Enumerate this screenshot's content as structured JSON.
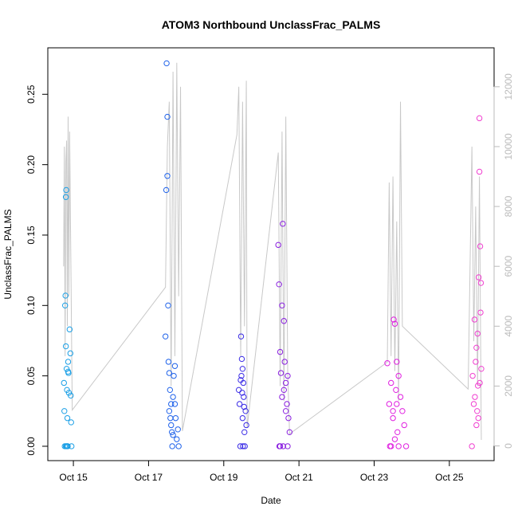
{
  "chart_data": {
    "type": "scatter",
    "title": "ATOM3 Northbound UnclassFrac_PALMS",
    "xlabel": "Date",
    "ylabel": "UnclassFrac_PALMS",
    "xlim": [
      14.32,
      26.19
    ],
    "ylim": [
      -0.0102,
      0.283
    ],
    "y2lim": [
      -491,
      13300
    ],
    "xticks": [
      {
        "value": 15,
        "label": "Oct 15"
      },
      {
        "value": 17,
        "label": "Oct 17"
      },
      {
        "value": 19,
        "label": "Oct 19"
      },
      {
        "value": 21,
        "label": "Oct 21"
      },
      {
        "value": 23,
        "label": "Oct 23"
      },
      {
        "value": 25,
        "label": "Oct 25"
      }
    ],
    "yticks": [
      {
        "value": 0,
        "label": "0.00"
      },
      0.05,
      {
        "value": 0.1,
        "label": "0.10"
      },
      0.15,
      {
        "value": 0.2,
        "label": "0.20"
      },
      0.25
    ],
    "y2ticks": [
      0,
      2000,
      4000,
      6000,
      8000,
      10000,
      12000
    ],
    "series": [
      {
        "color": "#1a9fe6",
        "x": [
          14.75,
          14.76,
          14.77,
          14.78,
          14.79,
          14.8,
          14.8,
          14.81,
          14.82,
          14.83,
          14.84,
          14.85,
          14.86,
          14.87,
          14.88,
          14.9,
          14.92,
          14.93,
          14.94,
          14.95,
          14.8,
          14.82,
          14.84,
          14.86
        ],
        "values": [
          0.045,
          0.025,
          0.0,
          0.1,
          0.107,
          0.071,
          0.177,
          0.182,
          0.055,
          0.04,
          0.02,
          0.0,
          0.06,
          0.052,
          0.038,
          0.083,
          0.066,
          0.036,
          0.017,
          0.0,
          0.0,
          0.0,
          0.0,
          0.053
        ]
      },
      {
        "color": "#1f62ea",
        "x": [
          17.45,
          17.47,
          17.48,
          17.5,
          17.5,
          17.52,
          17.53,
          17.55,
          17.57,
          17.58,
          17.6,
          17.62,
          17.63,
          17.65,
          17.67,
          17.7,
          17.72,
          17.75,
          17.78,
          17.8,
          17.55,
          17.6,
          17.65,
          17.7
        ],
        "values": [
          0.078,
          0.182,
          0.272,
          0.234,
          0.192,
          0.1,
          0.06,
          0.052,
          0.04,
          0.02,
          0.03,
          0.01,
          0.0,
          0.035,
          0.05,
          0.057,
          0.02,
          0.005,
          0.012,
          0.0,
          0.025,
          0.015,
          0.008,
          0.03
        ]
      },
      {
        "color": "#3a2be6",
        "x": [
          19.4,
          19.42,
          19.44,
          19.45,
          19.46,
          19.48,
          19.5,
          19.5,
          19.52,
          19.53,
          19.55,
          19.56,
          19.58,
          19.6,
          19.47,
          19.49,
          19.51,
          19.54
        ],
        "values": [
          0.04,
          0.03,
          0.0,
          0.047,
          0.078,
          0.062,
          0.055,
          0.02,
          0.045,
          0.035,
          0.01,
          0.0,
          0.025,
          0.015,
          0.05,
          0.038,
          0.0,
          0.028
        ]
      },
      {
        "color": "#8a1fe0",
        "x": [
          20.45,
          20.47,
          20.5,
          20.52,
          20.55,
          20.57,
          20.6,
          20.62,
          20.65,
          20.68,
          20.7,
          20.72,
          20.75,
          20.5,
          20.55,
          20.6,
          20.65,
          20.7,
          20.58,
          20.48
        ],
        "values": [
          0.143,
          0.115,
          0.067,
          0.052,
          0.1,
          0.158,
          0.089,
          0.06,
          0.045,
          0.03,
          0.0,
          0.02,
          0.01,
          0.0,
          0.035,
          0.04,
          0.025,
          0.05,
          0.0,
          0.0
        ]
      },
      {
        "color": "#e01fe0",
        "x": [
          23.35,
          23.4,
          23.42,
          23.45,
          23.5,
          23.52,
          23.55,
          23.58,
          23.6,
          23.62,
          23.65,
          23.7,
          23.75,
          23.8,
          23.85,
          23.45,
          23.55,
          23.65,
          23.5,
          23.6
        ],
        "values": [
          0.059,
          0.03,
          0.0,
          0.045,
          0.02,
          0.09,
          0.087,
          0.04,
          0.06,
          0.01,
          0.0,
          0.035,
          0.025,
          0.015,
          0.0,
          0.0,
          0.005,
          0.05,
          0.025,
          0.03
        ]
      },
      {
        "color": "#f03fd0",
        "x": [
          25.6,
          25.62,
          25.65,
          25.67,
          25.7,
          25.72,
          25.74,
          25.75,
          25.76,
          25.78,
          25.8,
          25.8,
          25.82,
          25.83,
          25.85,
          25.68,
          25.72,
          25.77,
          25.81,
          25.84
        ],
        "values": [
          0.0,
          0.05,
          0.03,
          0.09,
          0.06,
          0.07,
          0.025,
          0.08,
          0.043,
          0.12,
          0.233,
          0.195,
          0.142,
          0.095,
          0.055,
          0.035,
          0.015,
          0.02,
          0.045,
          0.116
        ]
      },
      {
        "type": "line",
        "axis": "y2",
        "color": "#c8c8c8",
        "x": [
          14.74,
          14.76,
          14.78,
          14.8,
          14.82,
          14.84,
          14.86,
          14.88,
          14.9,
          14.97,
          17.45,
          17.5,
          17.55,
          17.6,
          17.65,
          17.7,
          17.75,
          17.8,
          17.85,
          17.9,
          19.35,
          19.4,
          19.45,
          19.5,
          19.55,
          19.6,
          19.62,
          20.45,
          20.5,
          20.55,
          20.6,
          20.65,
          20.7,
          20.75,
          23.35,
          23.4,
          23.45,
          23.5,
          23.55,
          23.6,
          23.65,
          23.7,
          23.75,
          25.5,
          25.6,
          25.65,
          25.7,
          25.75,
          25.8,
          25.85
        ],
        "values": [
          6000,
          10000,
          3000,
          9500,
          10200,
          4000,
          11000,
          5000,
          10500,
          1200,
          5300,
          10000,
          11500,
          2000,
          12500,
          3000,
          12800,
          5000,
          12000,
          500,
          10400,
          12000,
          3000,
          11500,
          4000,
          12200,
          600,
          9800,
          2000,
          10500,
          1500,
          11000,
          2500,
          400,
          2800,
          8800,
          3000,
          9000,
          2500,
          7500,
          1500,
          11500,
          4000,
          1900,
          10000,
          3500,
          8000,
          2000,
          9000,
          200
        ]
      }
    ]
  }
}
